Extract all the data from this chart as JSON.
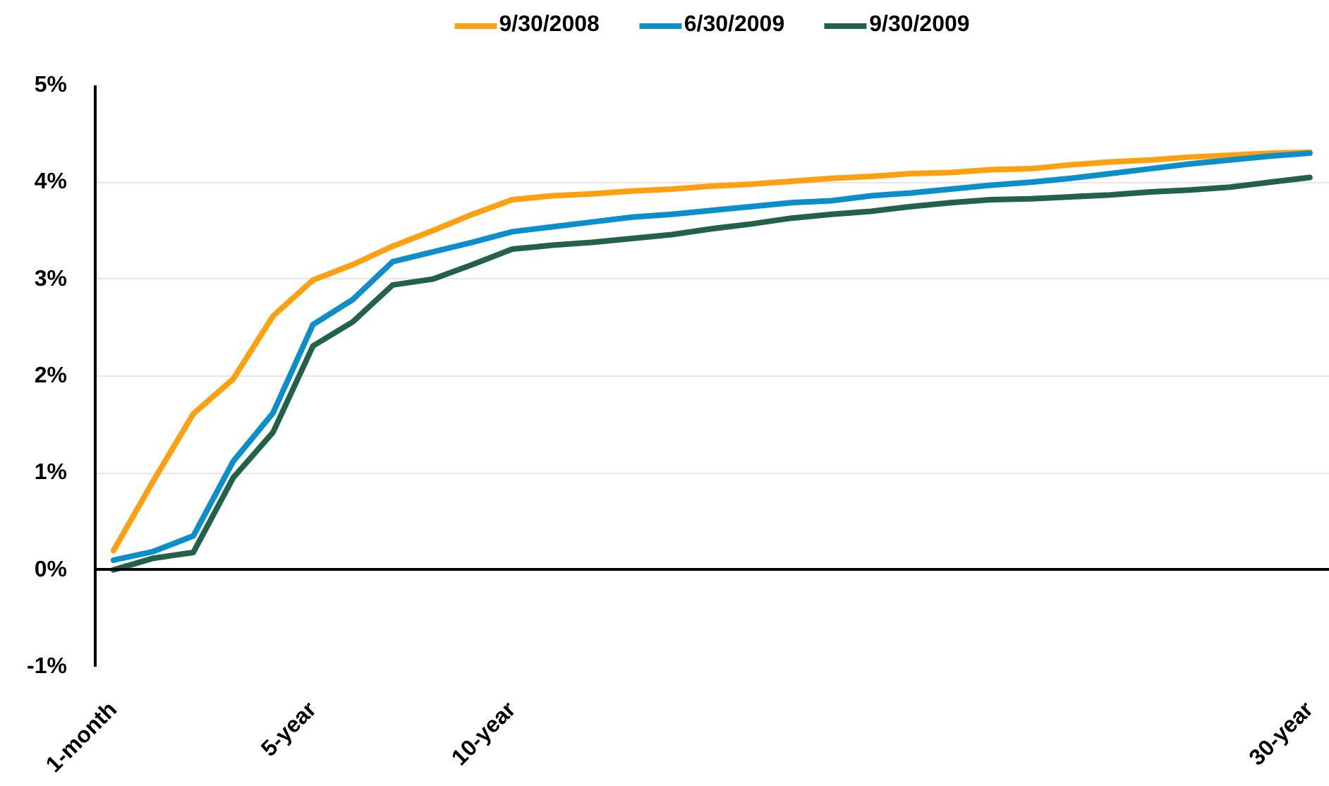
{
  "chart_data": {
    "type": "line",
    "categories": [
      "1-month",
      null,
      null,
      null,
      null,
      "5-year",
      null,
      null,
      null,
      null,
      "10-year",
      null,
      null,
      null,
      null,
      null,
      null,
      null,
      null,
      null,
      null,
      null,
      null,
      null,
      null,
      null,
      null,
      null,
      null,
      null,
      "30-year"
    ],
    "series": [
      {
        "name": "9/30/2008",
        "color": "#ffa010",
        "values": [
          0.2,
          0.92,
          1.61,
          1.97,
          2.62,
          2.99,
          3.15,
          3.34,
          3.5,
          3.67,
          3.82,
          3.86,
          3.88,
          3.91,
          3.93,
          3.96,
          3.98,
          4.01,
          4.04,
          4.06,
          4.09,
          4.1,
          4.13,
          4.14,
          4.18,
          4.21,
          4.23,
          4.26,
          4.28,
          4.3,
          4.31
        ]
      },
      {
        "name": "6/30/2009",
        "color": "#0b8fca",
        "values": [
          0.1,
          0.19,
          0.35,
          1.12,
          1.62,
          2.53,
          2.79,
          3.18,
          3.28,
          3.38,
          3.49,
          3.54,
          3.59,
          3.64,
          3.67,
          3.71,
          3.75,
          3.79,
          3.81,
          3.86,
          3.89,
          3.93,
          3.97,
          4.0,
          4.04,
          4.09,
          4.14,
          4.19,
          4.23,
          4.27,
          4.3
        ]
      },
      {
        "name": "9/30/2009",
        "color": "#22624a",
        "values": [
          0.0,
          0.12,
          0.18,
          0.95,
          1.42,
          2.31,
          2.56,
          2.94,
          3.0,
          3.15,
          3.31,
          3.35,
          3.38,
          3.42,
          3.46,
          3.52,
          3.57,
          3.63,
          3.67,
          3.7,
          3.75,
          3.79,
          3.82,
          3.83,
          3.85,
          3.87,
          3.9,
          3.92,
          3.95,
          4.0,
          4.05
        ]
      }
    ],
    "ylim": [
      -1,
      5
    ],
    "yticks": [
      {
        "value": -1,
        "label": "-1%"
      },
      {
        "value": 0,
        "label": "0%"
      },
      {
        "value": 1,
        "label": "1%"
      },
      {
        "value": 2,
        "label": "2%"
      },
      {
        "value": 3,
        "label": "3%"
      },
      {
        "value": 4,
        "label": "4%"
      },
      {
        "value": 5,
        "label": "5%"
      }
    ],
    "grid": "y",
    "legend": "top",
    "line_style": "solid"
  }
}
